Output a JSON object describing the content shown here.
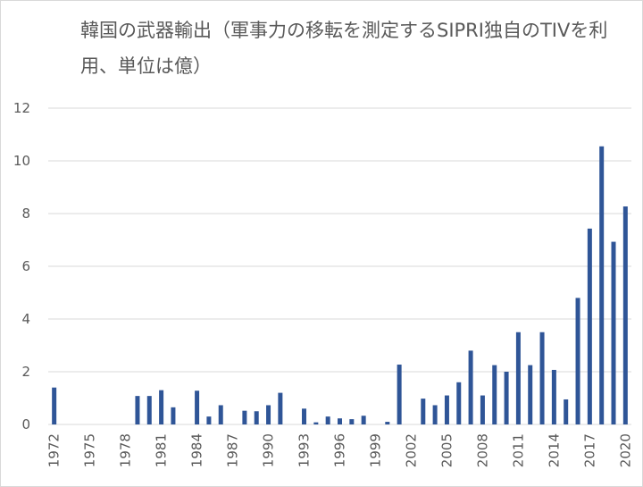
{
  "chart_data": {
    "type": "bar",
    "title": "韓国の武器輸出（軍事力の移転を測定するSIPRI独自のTIVを利用、単位は億）",
    "xlabel": "",
    "ylabel": "",
    "ylim": [
      0,
      12
    ],
    "yticks": [
      "0",
      "2",
      "4",
      "6",
      "8",
      "10",
      "12"
    ],
    "grid": true,
    "legend": "none",
    "bar_color": "#2f5597",
    "categories": [
      1972,
      1973,
      1974,
      1975,
      1976,
      1977,
      1978,
      1979,
      1980,
      1981,
      1982,
      1983,
      1984,
      1985,
      1986,
      1987,
      1988,
      1989,
      1990,
      1991,
      1992,
      1993,
      1994,
      1995,
      1996,
      1997,
      1998,
      1999,
      2000,
      2001,
      2002,
      2003,
      2004,
      2005,
      2006,
      2007,
      2008,
      2009,
      2010,
      2011,
      2012,
      2013,
      2014,
      2015,
      2016,
      2017,
      2018,
      2019,
      2020
    ],
    "xtick_labels": [
      "1972",
      "1975",
      "1978",
      "1981",
      "1984",
      "1987",
      "1990",
      "1993",
      "1996",
      "1999",
      "2002",
      "2005",
      "2008",
      "2011",
      "2014",
      "2017",
      "2020"
    ],
    "values": [
      1.4,
      0,
      0,
      0,
      0,
      0,
      0,
      1.08,
      1.08,
      1.3,
      0.65,
      0,
      1.28,
      0.3,
      0.73,
      0,
      0.52,
      0.5,
      0.73,
      1.2,
      0,
      0.6,
      0.08,
      0.3,
      0.23,
      0.2,
      0.33,
      0,
      0.1,
      2.27,
      0,
      0.98,
      0.73,
      1.1,
      1.6,
      2.8,
      1.1,
      2.25,
      2.0,
      3.5,
      2.25,
      3.5,
      2.07,
      0.95,
      4.8,
      7.43,
      10.55,
      6.93,
      8.27
    ]
  }
}
